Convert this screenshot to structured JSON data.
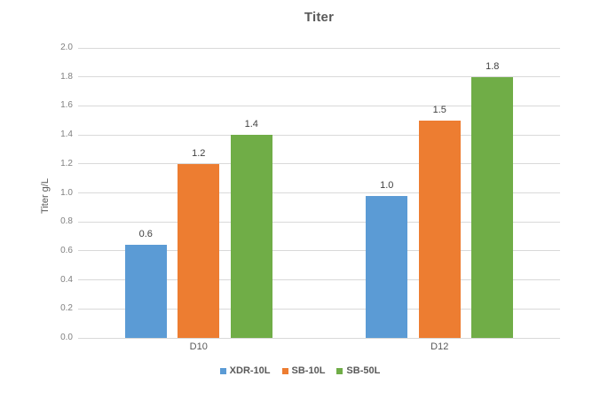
{
  "chart_data": {
    "type": "bar",
    "title": "Titer",
    "ylabel": "Titer g/L",
    "xlabel": "",
    "categories": [
      "D10",
      "D12"
    ],
    "series": [
      {
        "name": "XDR-10L",
        "color": "#5B9BD5",
        "values": [
          0.64,
          0.98
        ],
        "data_labels": [
          "0.6",
          "1.0"
        ]
      },
      {
        "name": "SB-10L",
        "color": "#ED7D31",
        "values": [
          1.2,
          1.5
        ],
        "data_labels": [
          "1.2",
          "1.5"
        ]
      },
      {
        "name": "SB-50L",
        "color": "#70AD47",
        "values": [
          1.4,
          1.8
        ],
        "data_labels": [
          "1.4",
          "1.8"
        ]
      }
    ],
    "ylim": [
      0.0,
      2.0
    ],
    "ytick_step": 0.2,
    "yticks": [
      "0.0",
      "0.2",
      "0.4",
      "0.6",
      "0.8",
      "1.0",
      "1.2",
      "1.4",
      "1.6",
      "1.8",
      "2.0"
    ],
    "grid": true,
    "gridline_color": "#D9D9D9",
    "legend_position": "bottom",
    "tick_label_color": "#808080",
    "title_color": "#595959",
    "data_label_color": "#404040"
  }
}
